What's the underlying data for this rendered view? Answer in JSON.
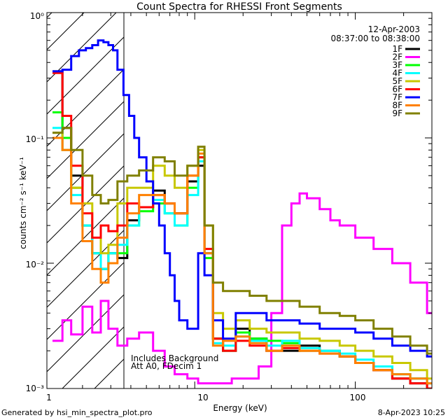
{
  "chart_data": {
    "type": "line",
    "title": "Count Spectra for RHESSI Front Segments",
    "xlabel": "Energy (keV)",
    "ylabel": "counts cm⁻² s⁻¹ keV⁻¹",
    "xscale": "log",
    "yscale": "log",
    "xlim": [
      1.2,
      300
    ],
    "ylim": [
      0.001,
      1
    ],
    "x_ticks": [
      "10",
      "100"
    ],
    "x_minor_tick_labels": [
      "1"
    ],
    "y_ticks": [
      "10⁰",
      "10⁻¹",
      "10⁻²",
      "10⁻³"
    ],
    "date": "12-Apr-2003",
    "time_range": "08:37:00 to 08:38:00",
    "annotations": [
      "Includes Background",
      "Att A0, FDecim 1"
    ],
    "hatched_region_below_keV": 3,
    "series": [
      {
        "name": "1F",
        "color": "#000000",
        "x": [
          1.3,
          1.5,
          1.7,
          2.0,
          2.3,
          2.6,
          2.9,
          3.3,
          3.8,
          4.5,
          5.5,
          6.5,
          7.5,
          9,
          10.5,
          11.5,
          13,
          15,
          18,
          22,
          28,
          35,
          45,
          60,
          80,
          100,
          130,
          170,
          220,
          280
        ],
        "y": [
          0.34,
          0.12,
          0.05,
          0.02,
          0.012,
          0.009,
          0.012,
          0.011,
          0.022,
          0.028,
          0.038,
          0.03,
          0.025,
          0.045,
          0.06,
          0.012,
          0.0025,
          0.002,
          0.003,
          0.0025,
          0.002,
          0.002,
          0.0022,
          0.002,
          0.0018,
          0.0016,
          0.0014,
          0.0012,
          0.0011,
          0.001
        ]
      },
      {
        "name": "2F",
        "color": "#ff00ff",
        "x": [
          1.3,
          1.5,
          1.7,
          2.0,
          2.3,
          2.6,
          2.9,
          3.3,
          3.8,
          4.5,
          5.5,
          6.5,
          7.5,
          9,
          10.5,
          12,
          14,
          17,
          20,
          25,
          30,
          35,
          40,
          45,
          50,
          60,
          70,
          80,
          100,
          130,
          170,
          220,
          280
        ],
        "y": [
          0.0024,
          0.0035,
          0.0027,
          0.0045,
          0.0028,
          0.005,
          0.003,
          0.0022,
          0.0025,
          0.0028,
          0.002,
          0.0015,
          0.0013,
          0.0012,
          0.0011,
          0.0011,
          0.0011,
          0.0012,
          0.0012,
          0.0015,
          0.004,
          0.02,
          0.03,
          0.036,
          0.033,
          0.027,
          0.022,
          0.02,
          0.016,
          0.013,
          0.01,
          0.007,
          0.004
        ]
      },
      {
        "name": "3F",
        "color": "#00ff00",
        "x": [
          1.3,
          1.5,
          1.7,
          2.0,
          2.3,
          2.6,
          2.9,
          3.3,
          3.8,
          4.5,
          5.5,
          6.5,
          7.5,
          9,
          10.5,
          11.5,
          13,
          15,
          18,
          22,
          28,
          35,
          45,
          60,
          80,
          100,
          130,
          170,
          220,
          280
        ],
        "y": [
          0.16,
          0.1,
          0.04,
          0.02,
          0.012,
          0.009,
          0.012,
          0.012,
          0.02,
          0.026,
          0.03,
          0.025,
          0.02,
          0.04,
          0.07,
          0.011,
          0.0025,
          0.002,
          0.0028,
          0.0025,
          0.0024,
          0.0023,
          0.002,
          0.002,
          0.0018,
          0.0016,
          0.0015,
          0.0013,
          0.0012,
          0.0011
        ]
      },
      {
        "name": "4F",
        "color": "#00ffff",
        "x": [
          1.3,
          1.5,
          1.7,
          2.0,
          2.3,
          2.6,
          2.9,
          3.3,
          3.8,
          4.5,
          5.5,
          6.5,
          7.5,
          9,
          10.5,
          11.5,
          13,
          15,
          18,
          22,
          28,
          35,
          45,
          60,
          80,
          100,
          130,
          170,
          220,
          280
        ],
        "y": [
          0.12,
          0.08,
          0.035,
          0.02,
          0.012,
          0.009,
          0.012,
          0.014,
          0.02,
          0.028,
          0.032,
          0.025,
          0.02,
          0.035,
          0.065,
          0.012,
          0.0023,
          0.0022,
          0.0026,
          0.0024,
          0.0022,
          0.0024,
          0.0021,
          0.002,
          0.0019,
          0.0017,
          0.0015,
          0.0013,
          0.0012,
          0.0011
        ]
      },
      {
        "name": "5F",
        "color": "#c8c800",
        "x": [
          1.3,
          1.5,
          1.7,
          2.0,
          2.3,
          2.6,
          2.9,
          3.3,
          3.8,
          4.5,
          5.5,
          6.5,
          7.5,
          9,
          10.5,
          11.5,
          13,
          15,
          18,
          22,
          28,
          35,
          45,
          60,
          80,
          100,
          130,
          170,
          220,
          280
        ],
        "y": [
          0.11,
          0.08,
          0.04,
          0.03,
          0.016,
          0.012,
          0.014,
          0.03,
          0.04,
          0.04,
          0.06,
          0.05,
          0.04,
          0.06,
          0.08,
          0.02,
          0.004,
          0.003,
          0.0035,
          0.003,
          0.0028,
          0.0028,
          0.0025,
          0.0024,
          0.0022,
          0.002,
          0.0018,
          0.0016,
          0.0014,
          0.0012
        ]
      },
      {
        "name": "6F",
        "color": "#ff0000",
        "x": [
          1.3,
          1.5,
          1.7,
          2.0,
          2.3,
          2.6,
          2.9,
          3.3,
          3.8,
          4.5,
          5.5,
          6.5,
          7.5,
          9,
          10.5,
          11.5,
          13,
          15,
          18,
          22,
          28,
          35,
          45,
          60,
          80,
          100,
          130,
          170,
          220,
          280
        ],
        "y": [
          0.33,
          0.15,
          0.06,
          0.025,
          0.016,
          0.02,
          0.018,
          0.02,
          0.03,
          0.028,
          0.035,
          0.03,
          0.025,
          0.05,
          0.07,
          0.013,
          0.0025,
          0.002,
          0.0024,
          0.0022,
          0.002,
          0.0021,
          0.002,
          0.0019,
          0.0018,
          0.0016,
          0.0014,
          0.0012,
          0.0011,
          0.001
        ]
      },
      {
        "name": "7F",
        "color": "#0000ff",
        "x": [
          1.3,
          1.5,
          1.7,
          1.9,
          2.1,
          2.3,
          2.5,
          2.7,
          2.9,
          3.1,
          3.3,
          3.6,
          3.9,
          4.2,
          4.5,
          5,
          5.5,
          6,
          6.5,
          7,
          7.5,
          8,
          9,
          10.5,
          11.5,
          13,
          15,
          18,
          22,
          28,
          35,
          45,
          60,
          80,
          100,
          130,
          170,
          220,
          280
        ],
        "y": [
          0.34,
          0.35,
          0.45,
          0.5,
          0.52,
          0.55,
          0.6,
          0.58,
          0.55,
          0.5,
          0.35,
          0.22,
          0.15,
          0.1,
          0.07,
          0.045,
          0.03,
          0.02,
          0.012,
          0.008,
          0.005,
          0.0035,
          0.003,
          0.012,
          0.008,
          0.0035,
          0.0025,
          0.004,
          0.004,
          0.0035,
          0.0035,
          0.0033,
          0.003,
          0.003,
          0.0028,
          0.0025,
          0.0022,
          0.002,
          0.0018
        ]
      },
      {
        "name": "8F",
        "color": "#ff8000",
        "x": [
          1.3,
          1.5,
          1.7,
          2.0,
          2.3,
          2.6,
          2.9,
          3.3,
          3.8,
          4.5,
          5.5,
          6.5,
          7.5,
          9,
          10.5,
          11.5,
          13,
          15,
          18,
          22,
          28,
          35,
          45,
          60,
          80,
          100,
          130,
          170,
          220,
          280
        ],
        "y": [
          0.1,
          0.08,
          0.03,
          0.015,
          0.009,
          0.007,
          0.01,
          0.016,
          0.025,
          0.035,
          0.035,
          0.03,
          0.025,
          0.05,
          0.075,
          0.012,
          0.0022,
          0.0024,
          0.0026,
          0.0023,
          0.002,
          0.0022,
          0.002,
          0.0019,
          0.0018,
          0.0016,
          0.0014,
          0.0013,
          0.0012,
          0.0011
        ]
      },
      {
        "name": "9F",
        "color": "#808000",
        "x": [
          1.3,
          1.5,
          1.7,
          2.0,
          2.3,
          2.6,
          2.9,
          3.3,
          3.8,
          4.5,
          5.5,
          6.5,
          7.5,
          9,
          10.5,
          11.5,
          13,
          15,
          18,
          22,
          28,
          35,
          45,
          60,
          80,
          100,
          130,
          170,
          220,
          280
        ],
        "y": [
          0.11,
          0.12,
          0.08,
          0.05,
          0.035,
          0.03,
          0.032,
          0.045,
          0.05,
          0.055,
          0.07,
          0.065,
          0.05,
          0.06,
          0.085,
          0.02,
          0.007,
          0.006,
          0.006,
          0.0055,
          0.005,
          0.005,
          0.0045,
          0.004,
          0.0038,
          0.0035,
          0.003,
          0.0026,
          0.0022,
          0.0019
        ]
      }
    ]
  },
  "footer": {
    "generated_by": "Generated by hsi_min_spectra_plot.pro",
    "timestamp": "8-Apr-2023 10:25"
  }
}
